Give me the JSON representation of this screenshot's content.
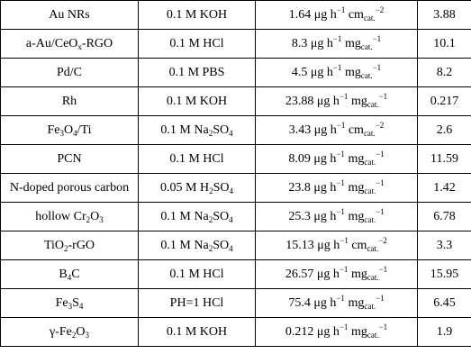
{
  "table": {
    "rows": [
      [
        "Au NRs",
        "0.1 M KOH",
        [
          {
            "text": "1.64 μg h"
          },
          {
            "text": "−1",
            "style": "sup"
          },
          {
            "text": " cm"
          },
          {
            "text": "cat.",
            "style": "sub"
          },
          {
            "text": "−2",
            "style": "sup"
          }
        ],
        3.88
      ],
      [
        [
          {
            "text": "a-Au/CeO"
          },
          {
            "text": "x",
            "style": "sub"
          },
          {
            "text": "-RGO"
          }
        ],
        "0.1 M HCl",
        [
          {
            "text": "8.3 μg h"
          },
          {
            "text": "−1",
            "style": "sup"
          },
          {
            "text": " mg"
          },
          {
            "text": "cat.",
            "style": "sub"
          },
          {
            "text": "−1",
            "style": "sup"
          }
        ],
        10.1
      ],
      [
        "Pd/C",
        "0.1 M PBS",
        [
          {
            "text": "4.5 μg h"
          },
          {
            "text": "−1",
            "style": "sup"
          },
          {
            "text": " mg"
          },
          {
            "text": "cat.",
            "style": "sub"
          },
          {
            "text": "−1",
            "style": "sup"
          }
        ],
        8.2
      ],
      [
        "Rh",
        "0.1 M KOH",
        [
          {
            "text": "23.88 μg h"
          },
          {
            "text": "−1",
            "style": "sup"
          },
          {
            "text": " mg"
          },
          {
            "text": "cat.",
            "style": "sub"
          },
          {
            "text": "−1",
            "style": "sup"
          }
        ],
        0.217
      ],
      [
        [
          {
            "text": "Fe"
          },
          {
            "text": "3",
            "style": "sub"
          },
          {
            "text": "O"
          },
          {
            "text": "4",
            "style": "sub"
          },
          {
            "text": "/Ti"
          }
        ],
        [
          {
            "text": "0.1 M Na"
          },
          {
            "text": "2",
            "style": "sub"
          },
          {
            "text": "SO"
          },
          {
            "text": "4",
            "style": "sub"
          }
        ],
        [
          {
            "text": "3.43 μg h"
          },
          {
            "text": "−1",
            "style": "sup"
          },
          {
            "text": " cm"
          },
          {
            "text": "cat.",
            "style": "sub"
          },
          {
            "text": "−2",
            "style": "sup"
          }
        ],
        2.6
      ],
      [
        "PCN",
        "0.1 M HCl",
        [
          {
            "text": "8.09 μg h"
          },
          {
            "text": "−1",
            "style": "sup"
          },
          {
            "text": " mg"
          },
          {
            "text": "cat.",
            "style": "sub"
          },
          {
            "text": "−1",
            "style": "sup"
          }
        ],
        11.59
      ],
      [
        "N-doped porous carbon",
        [
          {
            "text": "0.05 M H"
          },
          {
            "text": "2",
            "style": "sub"
          },
          {
            "text": "SO"
          },
          {
            "text": "4",
            "style": "sub"
          }
        ],
        [
          {
            "text": "23.8 μg h"
          },
          {
            "text": "−1",
            "style": "sup"
          },
          {
            "text": " mg"
          },
          {
            "text": "cat.",
            "style": "sub"
          },
          {
            "text": "−1",
            "style": "sup"
          }
        ],
        1.42
      ],
      [
        [
          {
            "text": "hollow Cr"
          },
          {
            "text": "2",
            "style": "sub"
          },
          {
            "text": "O"
          },
          {
            "text": "3",
            "style": "sub"
          }
        ],
        [
          {
            "text": "0.1 M Na"
          },
          {
            "text": "2",
            "style": "sub"
          },
          {
            "text": "SO"
          },
          {
            "text": "4",
            "style": "sub"
          }
        ],
        [
          {
            "text": "25.3 μg h"
          },
          {
            "text": "−1",
            "style": "sup"
          },
          {
            "text": " mg"
          },
          {
            "text": "cat.",
            "style": "sub"
          },
          {
            "text": "−1",
            "style": "sup"
          }
        ],
        6.78
      ],
      [
        [
          {
            "text": "TiO"
          },
          {
            "text": "2",
            "style": "sub"
          },
          {
            "text": "-rGO"
          }
        ],
        [
          {
            "text": "0.1 M Na"
          },
          {
            "text": "2",
            "style": "sub"
          },
          {
            "text": "SO"
          },
          {
            "text": "4",
            "style": "sub"
          }
        ],
        [
          {
            "text": "15.13 μg h"
          },
          {
            "text": "−1",
            "style": "sup"
          },
          {
            "text": " cm"
          },
          {
            "text": "cat.",
            "style": "sub"
          },
          {
            "text": "−2",
            "style": "sup"
          }
        ],
        3.3
      ],
      [
        [
          {
            "text": "B"
          },
          {
            "text": "4",
            "style": "sub"
          },
          {
            "text": "C"
          }
        ],
        "0.1 M HCl",
        [
          {
            "text": "26.57 μg h"
          },
          {
            "text": "−1",
            "style": "sup"
          },
          {
            "text": " mg"
          },
          {
            "text": "cat.",
            "style": "sub"
          },
          {
            "text": "−1",
            "style": "sup"
          }
        ],
        15.95
      ],
      [
        [
          {
            "text": "Fe"
          },
          {
            "text": "3",
            "style": "sub"
          },
          {
            "text": "S"
          },
          {
            "text": "4",
            "style": "sub"
          }
        ],
        "PH=1 HCl",
        [
          {
            "text": "75.4 μg h"
          },
          {
            "text": "−1",
            "style": "sup"
          },
          {
            "text": " mg"
          },
          {
            "text": "cat.",
            "style": "sub"
          },
          {
            "text": "−1",
            "style": "sup"
          }
        ],
        6.45
      ],
      [
        [
          {
            "text": "γ-Fe"
          },
          {
            "text": "2",
            "style": "sub"
          },
          {
            "text": "O"
          },
          {
            "text": "3",
            "style": "sub"
          }
        ],
        "0.1 M KOH",
        [
          {
            "text": "0.212 μg h"
          },
          {
            "text": "−1",
            "style": "sup"
          },
          {
            "text": " mg"
          },
          {
            "text": "cat.",
            "style": "sub"
          },
          {
            "text": "−1",
            "style": "sup"
          }
        ],
        1.9
      ]
    ]
  }
}
